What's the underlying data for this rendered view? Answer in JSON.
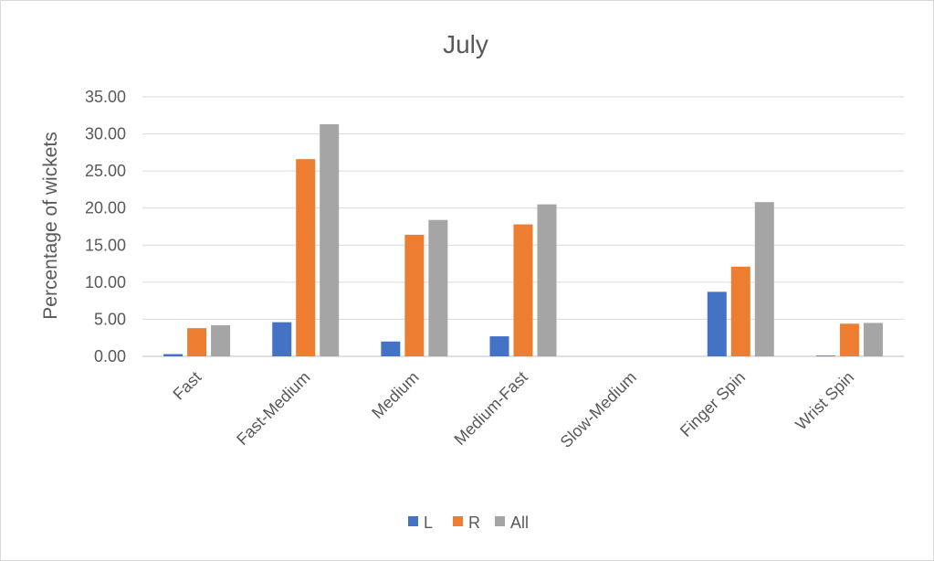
{
  "chart_data": {
    "type": "bar",
    "title": "July",
    "xlabel": "",
    "ylabel": "Percentage of wickets",
    "ylim": [
      0,
      35
    ],
    "ytick_step": 5,
    "ytick_labels": [
      "0.00",
      "5.00",
      "10.00",
      "15.00",
      "20.00",
      "25.00",
      "30.00",
      "35.00"
    ],
    "categories": [
      "Fast",
      "Fast-Medium",
      "Medium",
      "Medium-Fast",
      "Slow-Medium",
      "Finger Spin",
      "Wrist Spin"
    ],
    "series": [
      {
        "name": "L",
        "color": "#4472C4",
        "values": [
          0.3,
          4.6,
          2.0,
          2.7,
          0.0,
          8.7,
          0.1
        ]
      },
      {
        "name": "R",
        "color": "#ED7D31",
        "values": [
          3.8,
          26.6,
          16.4,
          17.8,
          0.0,
          12.1,
          4.4
        ]
      },
      {
        "name": "All",
        "color": "#A5A5A5",
        "values": [
          4.2,
          31.3,
          18.4,
          20.5,
          0.0,
          20.8,
          4.5
        ]
      }
    ],
    "grid": true,
    "legend_position": "bottom"
  }
}
